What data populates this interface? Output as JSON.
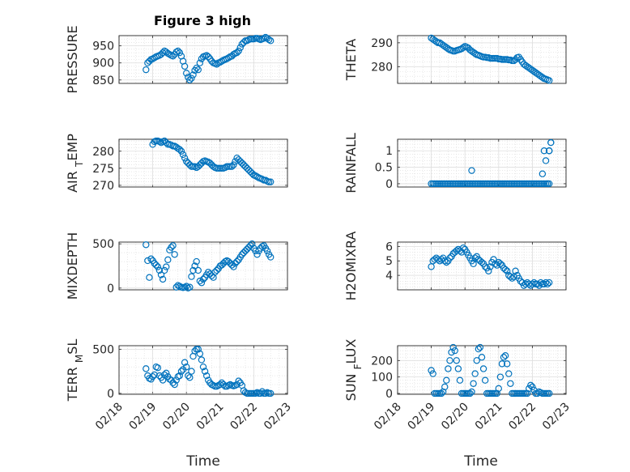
{
  "figure": {
    "title": "Figure 3 high",
    "marker_color": "#0072BD"
  },
  "chart_data": [
    {
      "type": "scatter",
      "id": "pressure",
      "ylabel": "PRESSURE",
      "ylim": [
        840,
        980
      ],
      "yticks": [
        850,
        900,
        950
      ],
      "ytick_labels": [
        "850",
        "900",
        "950"
      ],
      "xlim": [
        18,
        23
      ],
      "grid": true,
      "minor_grid": true,
      "x": [
        18.8,
        18.85,
        18.9,
        18.95,
        19.0,
        19.05,
        19.1,
        19.15,
        19.2,
        19.25,
        19.3,
        19.35,
        19.4,
        19.45,
        19.5,
        19.55,
        19.6,
        19.65,
        19.7,
        19.75,
        19.8,
        19.85,
        19.9,
        19.95,
        20.0,
        20.05,
        20.1,
        20.15,
        20.2,
        20.25,
        20.3,
        20.35,
        20.4,
        20.45,
        20.5,
        20.55,
        20.6,
        20.65,
        20.7,
        20.75,
        20.8,
        20.85,
        20.9,
        20.95,
        21.0,
        21.05,
        21.1,
        21.15,
        21.2,
        21.25,
        21.3,
        21.35,
        21.4,
        21.45,
        21.5,
        21.55,
        21.6,
        21.65,
        21.7,
        21.75,
        21.8,
        21.85,
        21.9,
        21.95,
        22.0,
        22.05,
        22.1,
        22.15,
        22.2,
        22.25,
        22.3,
        22.35,
        22.4,
        22.45,
        22.5
      ],
      "y": [
        880,
        900,
        905,
        910,
        912,
        915,
        918,
        920,
        922,
        925,
        930,
        935,
        932,
        928,
        925,
        922,
        920,
        925,
        932,
        935,
        930,
        920,
        905,
        890,
        870,
        858,
        850,
        855,
        865,
        878,
        885,
        880,
        900,
        912,
        918,
        920,
        922,
        918,
        912,
        905,
        900,
        898,
        896,
        900,
        902,
        905,
        908,
        910,
        912,
        915,
        918,
        920,
        925,
        928,
        930,
        935,
        945,
        955,
        960,
        965,
        965,
        968,
        970,
        970,
        970,
        972,
        972,
        970,
        968,
        970,
        972,
        975,
        972,
        968,
        965
      ]
    },
    {
      "type": "scatter",
      "id": "theta",
      "ylabel": "THETA",
      "ylim": [
        273,
        293
      ],
      "yticks": [
        280,
        290
      ],
      "ytick_labels": [
        "280",
        "290"
      ],
      "xlim": [
        18,
        23
      ],
      "grid": true,
      "minor_grid": true,
      "x": [
        19.0,
        19.05,
        19.1,
        19.15,
        19.2,
        19.25,
        19.3,
        19.35,
        19.4,
        19.45,
        19.5,
        19.55,
        19.6,
        19.65,
        19.7,
        19.75,
        19.8,
        19.85,
        19.9,
        19.95,
        20.0,
        20.05,
        20.1,
        20.15,
        20.2,
        20.25,
        20.3,
        20.35,
        20.4,
        20.45,
        20.5,
        20.55,
        20.6,
        20.65,
        20.7,
        20.75,
        20.8,
        20.85,
        20.9,
        20.95,
        21.0,
        21.05,
        21.1,
        21.15,
        21.2,
        21.25,
        21.3,
        21.35,
        21.4,
        21.45,
        21.5,
        21.55,
        21.6,
        21.65,
        21.7,
        21.75,
        21.8,
        21.85,
        21.9,
        21.95,
        22.0,
        22.05,
        22.1,
        22.15,
        22.2,
        22.25,
        22.3,
        22.35,
        22.4,
        22.45,
        22.5
      ],
      "y": [
        292,
        291.5,
        291,
        290.5,
        290,
        290,
        289.5,
        289,
        288.5,
        288,
        287.5,
        287,
        286.8,
        286.5,
        286.5,
        286.8,
        287,
        287.2,
        287.5,
        288,
        288.5,
        288.2,
        287.8,
        287,
        286.5,
        286,
        285.5,
        285,
        284.8,
        284.5,
        284.2,
        284,
        284,
        283.8,
        283.8,
        283.5,
        283.5,
        283.5,
        283.5,
        283.5,
        283.2,
        283.2,
        283,
        283,
        283,
        283,
        282.8,
        282.8,
        282.5,
        282.5,
        283,
        283.8,
        284,
        283,
        282,
        281,
        280.5,
        280,
        279.5,
        279,
        278.5,
        278,
        277.5,
        277,
        276.5,
        276,
        275.5,
        275,
        274.8,
        274.5,
        274.2
      ]
    },
    {
      "type": "scatter",
      "id": "air_temp",
      "ylabel": "AIR_TEMP",
      "ylim": [
        269.5,
        283.5
      ],
      "yticks": [
        270,
        275,
        280
      ],
      "ytick_labels": [
        "270",
        "275",
        "280"
      ],
      "xlim": [
        18,
        23
      ],
      "grid": true,
      "minor_grid": true,
      "x": [
        19.0,
        19.05,
        19.1,
        19.15,
        19.2,
        19.25,
        19.3,
        19.35,
        19.4,
        19.45,
        19.5,
        19.55,
        19.6,
        19.65,
        19.7,
        19.75,
        19.8,
        19.85,
        19.9,
        19.95,
        20.0,
        20.05,
        20.1,
        20.15,
        20.2,
        20.25,
        20.3,
        20.35,
        20.4,
        20.45,
        20.5,
        20.55,
        20.6,
        20.65,
        20.7,
        20.75,
        20.8,
        20.85,
        20.9,
        20.95,
        21.0,
        21.05,
        21.1,
        21.15,
        21.2,
        21.25,
        21.3,
        21.35,
        21.4,
        21.45,
        21.5,
        21.55,
        21.6,
        21.65,
        21.7,
        21.75,
        21.8,
        21.85,
        21.9,
        21.95,
        22.0,
        22.05,
        22.1,
        22.15,
        22.2,
        22.25,
        22.3,
        22.35,
        22.4,
        22.45,
        22.5
      ],
      "y": [
        282,
        282.8,
        283,
        283,
        282.8,
        282.5,
        282.8,
        283,
        282.5,
        282,
        282,
        281.8,
        281.5,
        281.5,
        281.2,
        280.8,
        280.5,
        280,
        279,
        278,
        277,
        276.5,
        276,
        275.5,
        275.5,
        275.5,
        275.2,
        275.5,
        276,
        276.5,
        277,
        277.2,
        277,
        276.8,
        276.5,
        276,
        275.5,
        275.2,
        275,
        275,
        275,
        275,
        275,
        275.2,
        275.5,
        275.5,
        275.5,
        275.5,
        276,
        277,
        278,
        277.5,
        277,
        276.5,
        276,
        275.5,
        275,
        274.5,
        274,
        273.5,
        273,
        272.8,
        272.5,
        272.2,
        272,
        271.8,
        271.5,
        271.5,
        271.2,
        271,
        271
      ]
    },
    {
      "type": "scatter",
      "id": "rainfall",
      "ylabel": "RAINFALL",
      "ylim": [
        -0.1,
        1.35
      ],
      "yticks": [
        0,
        0.5,
        1
      ],
      "ytick_labels": [
        "0",
        "0.5",
        "1"
      ],
      "xlim": [
        18,
        23
      ],
      "grid": true,
      "minor_grid": true,
      "x": [
        19.0,
        19.05,
        19.1,
        19.15,
        19.2,
        19.25,
        19.3,
        19.35,
        19.4,
        19.45,
        19.5,
        19.55,
        19.6,
        19.65,
        19.7,
        19.75,
        19.8,
        19.85,
        19.9,
        19.95,
        20.0,
        20.05,
        20.1,
        20.15,
        20.2,
        20.25,
        20.3,
        20.35,
        20.4,
        20.45,
        20.5,
        20.55,
        20.6,
        20.65,
        20.7,
        20.75,
        20.8,
        20.85,
        20.9,
        20.95,
        21.0,
        21.05,
        21.1,
        21.15,
        21.2,
        21.25,
        21.3,
        21.35,
        21.4,
        21.45,
        21.5,
        21.55,
        21.6,
        21.65,
        21.7,
        21.75,
        21.8,
        21.85,
        21.9,
        21.95,
        22.0,
        22.05,
        22.1,
        22.15,
        22.2,
        22.25,
        22.3,
        22.35,
        22.4,
        22.45,
        22.5,
        20.2,
        22.3,
        22.35,
        22.4,
        22.45,
        22.5,
        22.55,
        22.55,
        22.5
      ],
      "y": [
        0,
        0,
        0,
        0,
        0,
        0,
        0,
        0,
        0,
        0,
        0,
        0,
        0,
        0,
        0,
        0,
        0,
        0,
        0,
        0,
        0,
        0,
        0,
        0,
        0,
        0,
        0,
        0,
        0,
        0,
        0,
        0,
        0,
        0,
        0,
        0,
        0,
        0,
        0,
        0,
        0,
        0,
        0,
        0,
        0,
        0,
        0,
        0,
        0,
        0,
        0,
        0,
        0,
        0,
        0,
        0,
        0,
        0,
        0,
        0,
        0,
        0,
        0,
        0,
        0,
        0,
        0,
        0,
        0,
        0,
        0,
        0.4,
        0.3,
        1.0,
        0.7,
        0,
        1.0,
        1.25,
        1.25,
        1.0
      ]
    },
    {
      "type": "scatter",
      "id": "mixdepth",
      "ylabel": "MIXDEPTH",
      "ylim": [
        -20,
        520
      ],
      "yticks": [
        0,
        500
      ],
      "ytick_labels": [
        "0",
        "500"
      ],
      "xlim": [
        18,
        23
      ],
      "grid": true,
      "minor_grid": true,
      "x": [
        18.8,
        18.85,
        18.9,
        18.95,
        19.0,
        19.05,
        19.1,
        19.15,
        19.2,
        19.25,
        19.3,
        19.35,
        19.4,
        19.45,
        19.5,
        19.55,
        19.6,
        19.65,
        19.7,
        19.75,
        19.8,
        19.85,
        19.9,
        19.95,
        20.0,
        20.05,
        20.1,
        20.15,
        20.2,
        20.25,
        20.3,
        20.35,
        20.4,
        20.45,
        20.5,
        20.55,
        20.6,
        20.65,
        20.7,
        20.75,
        20.8,
        20.85,
        20.9,
        20.95,
        21.0,
        21.05,
        21.1,
        21.15,
        21.2,
        21.25,
        21.3,
        21.35,
        21.4,
        21.45,
        21.5,
        21.55,
        21.6,
        21.65,
        21.7,
        21.75,
        21.8,
        21.85,
        21.9,
        21.95,
        22.0,
        22.05,
        22.1,
        22.15,
        22.2,
        22.25,
        22.3,
        22.35,
        22.4,
        22.45,
        22.5
      ],
      "y": [
        490,
        310,
        120,
        330,
        310,
        280,
        260,
        240,
        200,
        150,
        100,
        200,
        240,
        320,
        430,
        460,
        480,
        380,
        10,
        30,
        20,
        10,
        5,
        10,
        20,
        0,
        10,
        130,
        200,
        250,
        300,
        200,
        80,
        60,
        100,
        120,
        150,
        180,
        160,
        140,
        120,
        180,
        200,
        220,
        250,
        260,
        280,
        300,
        310,
        300,
        280,
        260,
        240,
        280,
        300,
        320,
        350,
        380,
        400,
        420,
        440,
        460,
        480,
        500,
        450,
        420,
        380,
        420,
        450,
        470,
        480,
        450,
        420,
        380,
        350
      ]
    },
    {
      "type": "scatter",
      "id": "h2omixra",
      "ylabel": "H2OMIXRA",
      "ylim": [
        3.0,
        6.3
      ],
      "yticks": [
        4,
        5,
        6
      ],
      "ytick_labels": [
        "4",
        "5",
        "6"
      ],
      "xlim": [
        18,
        23
      ],
      "grid": true,
      "minor_grid": true,
      "x": [
        19.0,
        19.05,
        19.1,
        19.15,
        19.2,
        19.25,
        19.3,
        19.35,
        19.4,
        19.45,
        19.5,
        19.55,
        19.6,
        19.65,
        19.7,
        19.75,
        19.8,
        19.85,
        19.9,
        19.95,
        20.0,
        20.05,
        20.1,
        20.15,
        20.2,
        20.25,
        20.3,
        20.35,
        20.4,
        20.45,
        20.5,
        20.55,
        20.6,
        20.65,
        20.7,
        20.75,
        20.8,
        20.85,
        20.9,
        20.95,
        21.0,
        21.05,
        21.1,
        21.15,
        21.2,
        21.25,
        21.3,
        21.35,
        21.4,
        21.45,
        21.5,
        21.55,
        21.6,
        21.65,
        21.7,
        21.75,
        21.8,
        21.85,
        21.9,
        21.95,
        22.0,
        22.05,
        22.1,
        22.15,
        22.2,
        22.25,
        22.3,
        22.35,
        22.4,
        22.45,
        22.5
      ],
      "y": [
        4.6,
        5.0,
        5.1,
        5.2,
        5.1,
        5.0,
        5.1,
        5.2,
        5.0,
        4.9,
        5.0,
        5.2,
        5.3,
        5.5,
        5.6,
        5.7,
        5.8,
        5.7,
        5.6,
        5.9,
        5.8,
        5.6,
        5.4,
        5.2,
        5.0,
        4.8,
        5.2,
        5.3,
        5.1,
        5.0,
        4.9,
        4.8,
        4.6,
        4.5,
        4.3,
        4.6,
        4.9,
        5.1,
        4.8,
        4.7,
        4.9,
        4.8,
        4.7,
        4.5,
        4.4,
        4.3,
        4.0,
        3.9,
        3.8,
        3.9,
        4.3,
        4.0,
        3.8,
        3.6,
        3.5,
        3.3,
        3.4,
        3.5,
        3.4,
        3.3,
        3.4,
        3.5,
        3.4,
        3.4,
        3.3,
        3.5,
        3.4,
        3.4,
        3.5,
        3.4,
        3.5
      ]
    },
    {
      "type": "scatter",
      "id": "terr_msl",
      "ylabel": "TERR_MSL",
      "ylim": [
        -10,
        540
      ],
      "yticks": [
        0,
        500
      ],
      "ytick_labels": [
        "0",
        "500"
      ],
      "xlim": [
        18,
        23
      ],
      "grid": true,
      "minor_grid": true,
      "x": [
        18.8,
        18.85,
        18.9,
        18.95,
        19.0,
        19.05,
        19.1,
        19.15,
        19.2,
        19.25,
        19.3,
        19.35,
        19.4,
        19.45,
        19.5,
        19.55,
        19.6,
        19.65,
        19.7,
        19.75,
        19.8,
        19.85,
        19.9,
        19.95,
        20.0,
        20.05,
        20.1,
        20.15,
        20.2,
        20.25,
        20.3,
        20.35,
        20.4,
        20.45,
        20.5,
        20.55,
        20.6,
        20.65,
        20.7,
        20.75,
        20.8,
        20.85,
        20.9,
        20.95,
        21.0,
        21.05,
        21.1,
        21.15,
        21.2,
        21.25,
        21.3,
        21.35,
        21.4,
        21.45,
        21.5,
        21.55,
        21.6,
        21.65,
        21.7,
        21.75,
        21.8,
        21.85,
        21.9,
        21.95,
        22.0,
        22.05,
        22.1,
        22.15,
        22.2,
        22.25,
        22.3,
        22.35,
        22.4,
        22.45,
        22.5
      ],
      "y": [
        280,
        200,
        170,
        160,
        190,
        210,
        300,
        290,
        200,
        180,
        150,
        210,
        230,
        190,
        160,
        150,
        120,
        100,
        150,
        190,
        200,
        250,
        270,
        350,
        300,
        200,
        180,
        250,
        420,
        480,
        500,
        500,
        450,
        380,
        300,
        250,
        200,
        150,
        120,
        100,
        90,
        80,
        80,
        90,
        100,
        120,
        100,
        80,
        80,
        90,
        100,
        90,
        85,
        90,
        100,
        140,
        120,
        90,
        30,
        10,
        0,
        0,
        0,
        0,
        0,
        0,
        10,
        0,
        0,
        20,
        0,
        0,
        10,
        0,
        0
      ]
    },
    {
      "type": "scatter",
      "id": "sun_flux",
      "ylabel": "SUN_FLUX",
      "ylim": [
        -5,
        290
      ],
      "yticks": [
        0,
        100,
        200
      ],
      "ytick_labels": [
        "0",
        "100",
        "200"
      ],
      "xlim": [
        18,
        23
      ],
      "grid": true,
      "minor_grid": true,
      "x": [
        19.0,
        19.05,
        19.1,
        19.15,
        19.2,
        19.25,
        19.3,
        19.35,
        19.4,
        19.45,
        19.5,
        19.55,
        19.6,
        19.65,
        19.7,
        19.75,
        19.8,
        19.85,
        19.9,
        19.95,
        20.0,
        20.05,
        20.1,
        20.15,
        20.2,
        20.25,
        20.3,
        20.35,
        20.4,
        20.45,
        20.5,
        20.55,
        20.6,
        20.65,
        20.7,
        20.75,
        20.8,
        20.85,
        20.9,
        20.95,
        21.0,
        21.05,
        21.1,
        21.15,
        21.2,
        21.25,
        21.3,
        21.35,
        21.4,
        21.45,
        21.5,
        21.55,
        21.6,
        21.65,
        21.7,
        21.75,
        21.8,
        21.85,
        21.9,
        21.95,
        22.0,
        22.05,
        22.1,
        22.15,
        22.2,
        22.25,
        22.3,
        22.35,
        22.4,
        22.45,
        22.5
      ],
      "y": [
        140,
        120,
        0,
        0,
        0,
        0,
        0,
        10,
        40,
        80,
        150,
        200,
        250,
        280,
        260,
        200,
        150,
        80,
        0,
        0,
        0,
        0,
        0,
        0,
        10,
        60,
        120,
        200,
        270,
        280,
        220,
        150,
        80,
        0,
        0,
        0,
        0,
        0,
        0,
        0,
        30,
        100,
        180,
        220,
        230,
        180,
        120,
        60,
        0,
        0,
        0,
        0,
        0,
        0,
        0,
        0,
        0,
        0,
        30,
        50,
        40,
        20,
        0,
        0,
        10,
        5,
        0,
        0,
        0,
        0,
        0
      ]
    }
  ],
  "x_axis": {
    "tick_labels": [
      "02/18",
      "02/19",
      "02/20",
      "02/21",
      "02/22",
      "02/23"
    ],
    "label": "Time"
  }
}
